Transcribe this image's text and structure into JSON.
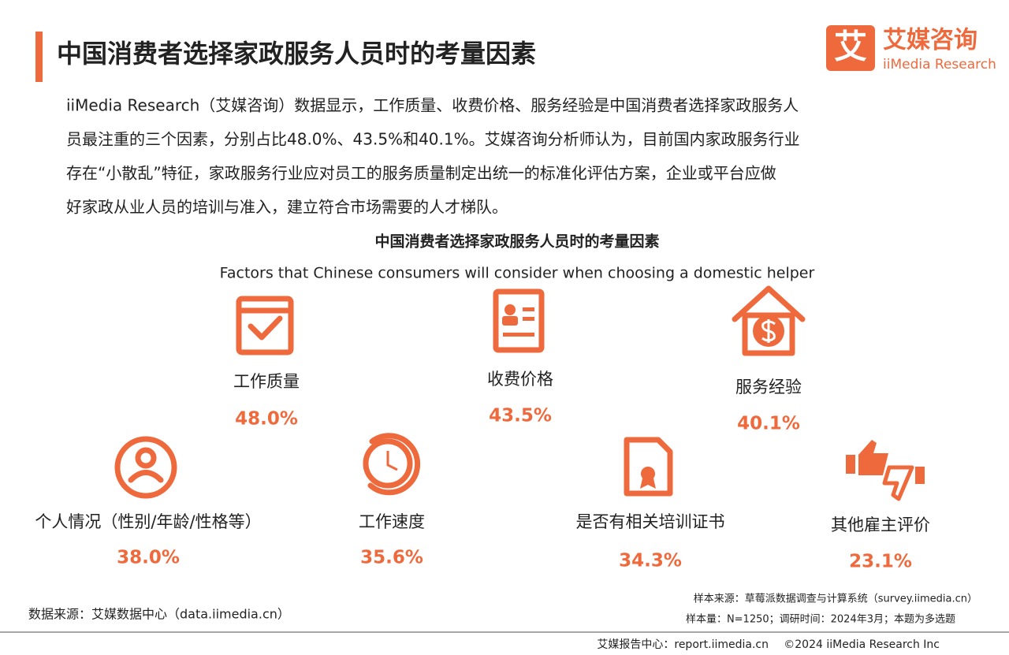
{
  "header": {
    "title": "中国消费者选择家政服务人员时的考量因素"
  },
  "logo": {
    "mark": "艾",
    "cn": "艾媒咨询",
    "en": "iiMedia Research"
  },
  "paragraph": [
    "iiMedia Research（艾媒咨询）数据显示，工作质量、收费价格、服务经验是中国消费者选择家政服务人",
    "员最注重的三个因素，分别占比48.0%、43.5%和40.1%。艾媒咨询分析师认为，目前国内家政服务行业",
    "存在“小散乱”特征，家政服务行业应对员工的服务质量制定出统一的标准化评估方案，企业或平台应做",
    "好家政从业人员的培训与准入，建立符合市场需要的人才梯队。"
  ],
  "infographic": {
    "title": "中国消费者选择家政服务人员时的考量因素",
    "subtitle": "Factors that Chinese consumers will consider when choosing a domestic helper",
    "factors": [
      {
        "label": "工作质量",
        "value": "48.0%"
      },
      {
        "label": "收费价格",
        "value": "43.5%"
      },
      {
        "label": "服务经验",
        "value": "40.1%"
      },
      {
        "label": "个人情况（性别/年龄/性格等）",
        "value": "38.0%"
      },
      {
        "label": "工作速度",
        "value": "35.6%"
      },
      {
        "label": "是否有相关培训证书",
        "value": "34.3%"
      },
      {
        "label": "其他雇主评价",
        "value": "23.1%"
      }
    ]
  },
  "footer": {
    "source": "数据来源：艾媒数据中心（data.iimedia.cn）",
    "sample_source": "样本来源：草莓派数据调查与计算系统（survey.iimedia.cn）",
    "sample_info": "样本量：N=1250；调研时间：2024年3月；本题为多选题",
    "report_center": "艾媒报告中心：report.iimedia.cn",
    "copyright": "©2024 iiMedia Research Inc"
  }
}
